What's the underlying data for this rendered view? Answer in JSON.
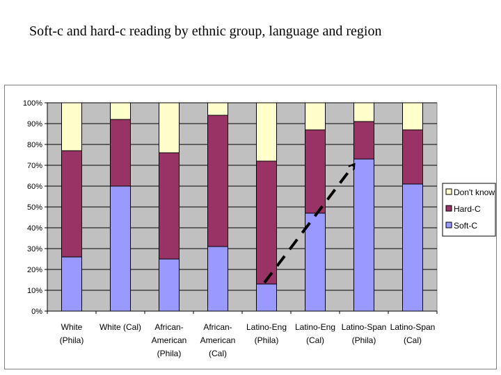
{
  "slide": {
    "title": "Soft-c and hard-c reading by ethnic group, language and region"
  },
  "chart_data": {
    "type": "bar",
    "stacked": true,
    "percent": true,
    "categories": [
      [
        "White",
        "(Phila)"
      ],
      [
        "White (Cal)"
      ],
      [
        "African-",
        "American",
        "(Phila)"
      ],
      [
        "African-",
        "American",
        "(Cal)"
      ],
      [
        "Latino-Eng",
        "(Phila)"
      ],
      [
        "Latino-Eng",
        "(Cal)"
      ],
      [
        "Latino-Span",
        "(Phila)"
      ],
      [
        "Latino-Span",
        "(Cal)"
      ]
    ],
    "series": [
      {
        "name": "Soft-C",
        "color": "#9999ff",
        "values": [
          26,
          60,
          25,
          31,
          13,
          47,
          73,
          61
        ]
      },
      {
        "name": "Hard-C",
        "color": "#993366",
        "values": [
          51,
          32,
          51,
          63,
          59,
          40,
          18,
          26
        ]
      },
      {
        "name": "Don't know",
        "color": "#ffffcc",
        "values": [
          23,
          8,
          24,
          6,
          28,
          13,
          9,
          13
        ]
      }
    ],
    "yticks": [
      "0%",
      "10%",
      "20%",
      "30%",
      "40%",
      "50%",
      "60%",
      "70%",
      "80%",
      "90%",
      "100%"
    ],
    "ylim": [
      0,
      100
    ],
    "plot_background": "#c0c0c0",
    "legend": {
      "placement": "right",
      "entries": [
        "Don't know",
        "Hard-C",
        "Soft-C"
      ]
    },
    "annotation": {
      "type": "dashed-arrow",
      "from_category": 4,
      "from_value": 17,
      "to_category": 6,
      "to_value": 70
    }
  }
}
